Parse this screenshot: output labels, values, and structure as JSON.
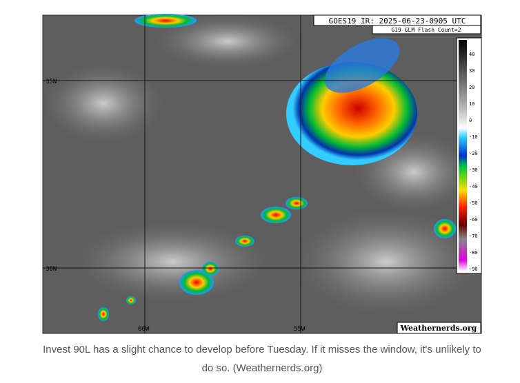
{
  "image": {
    "header": "GOES19 IR: 2025-06-23-0905 UTC",
    "subheader": "G19 GLM Flash Count=2",
    "latitudes": [
      "35N",
      "30N"
    ],
    "longitudes": [
      "60W",
      "55W"
    ],
    "credit": "Weathernerds.org",
    "colorbar": {
      "ticks": [
        40,
        30,
        20,
        10,
        0,
        -10,
        -20,
        -30,
        -40,
        -50,
        -60,
        -70,
        -80,
        -90
      ]
    }
  },
  "caption": "Invest 90L has a slight chance to develop before Tuesday. If it misses the window, it's unlikely to do so. (Weathernerds.org)"
}
